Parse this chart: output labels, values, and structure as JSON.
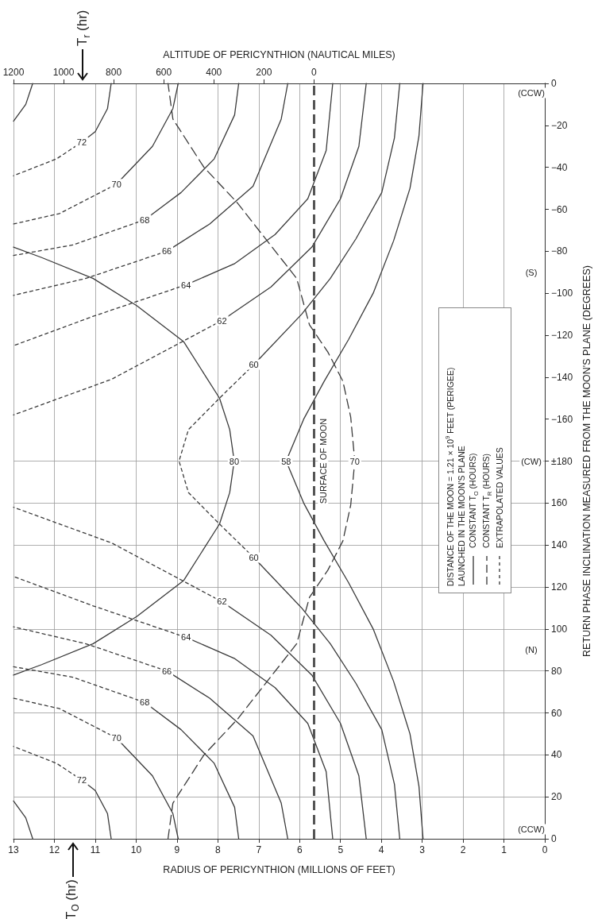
{
  "chart_data": {
    "type": "line",
    "xlabel": "RADIUS OF PERICYNTHION (MILLIONS OF FEET)",
    "x2label": "ALTITUDE OF PERICYNTHION (NAUTICAL MILES)",
    "y2label": "RETURN PHASE INCLINATION MEASURED FROM THE MOON'S PLANE (DEGREES)",
    "xlim": [
      13,
      0
    ],
    "xticks": [
      0,
      1,
      2,
      3,
      4,
      5,
      6,
      7,
      8,
      9,
      10,
      11,
      12,
      13
    ],
    "x2lim": [
      1200,
      -922
    ],
    "x2ticks": [
      0,
      200,
      400,
      600,
      800,
      1000,
      1200
    ],
    "ylim": [
      0,
      360
    ],
    "yticks": [
      0,
      20,
      40,
      60,
      80,
      100,
      120,
      140,
      160,
      {
        "value": 180,
        "label": "±180"
      }
    ],
    "y2lim": [
      -360,
      0
    ],
    "y2ticks": [
      {
        "value": -180,
        "label": null
      },
      {
        "value": -160,
        "label": "−160"
      },
      {
        "value": -140,
        "label": "−140"
      },
      {
        "value": -120,
        "label": "−120"
      },
      {
        "value": -100,
        "label": "−100"
      },
      {
        "value": -80,
        "label": "−80"
      },
      {
        "value": -60,
        "label": "−60"
      },
      {
        "value": -40,
        "label": "−40"
      },
      {
        "value": -20,
        "label": "−20"
      },
      0
    ],
    "grid": true,
    "marker": "none",
    "series": [
      {
        "color": "#3a3a3a",
        "line_style": "solid",
        "x": [
          12.53,
          12.7,
          13
        ],
        "values": [
          0,
          10,
          18
        ]
      },
      {
        "color": "#3a3a3a",
        "line_style": "solid",
        "axis": "y2",
        "x": [
          12.53,
          12.7,
          13
        ],
        "values": [
          0,
          -10,
          -18
        ]
      },
      {
        "name": "72",
        "color": "#3a3a3a",
        "line_style": "solid",
        "x": [
          10.61,
          10.7,
          11.0,
          11.33
        ],
        "values": [
          0,
          12,
          23,
          28
        ]
      },
      {
        "name": "72",
        "color": "#3a3a3a",
        "line_style": "solid",
        "axis": "y2",
        "x": [
          10.61,
          10.7,
          11.0,
          11.33
        ],
        "values": [
          0,
          -12,
          -23,
          -28
        ]
      },
      {
        "color": "#3a3a3a",
        "line_style": "dotted",
        "x": [
          11.33,
          11.95,
          13
        ],
        "values": [
          28,
          36,
          44
        ]
      },
      {
        "color": "#3a3a3a",
        "line_style": "dotted",
        "axis": "y2",
        "x": [
          11.33,
          11.95,
          13
        ],
        "values": [
          -28,
          -36,
          -44
        ]
      },
      {
        "name": "70",
        "color": "#3a3a3a",
        "line_style": "solid",
        "x": [
          8.97,
          9.1,
          9.6,
          10.48
        ],
        "values": [
          0,
          12,
          30,
          48
        ]
      },
      {
        "name": "70",
        "color": "#3a3a3a",
        "line_style": "solid",
        "axis": "y2",
        "x": [
          8.97,
          9.1,
          9.6,
          10.48
        ],
        "values": [
          0,
          -12,
          -30,
          -48
        ]
      },
      {
        "color": "#3a3a3a",
        "line_style": "dotted",
        "x": [
          10.48,
          11.87,
          13
        ],
        "values": [
          48,
          62,
          67
        ]
      },
      {
        "color": "#3a3a3a",
        "line_style": "dotted",
        "axis": "y2",
        "x": [
          10.48,
          11.87,
          13
        ],
        "values": [
          -48,
          -62,
          -67
        ]
      },
      {
        "name": "68",
        "color": "#3a3a3a",
        "line_style": "solid",
        "x": [
          7.49,
          7.59,
          8.09,
          8.9,
          9.79
        ],
        "values": [
          0,
          15,
          36,
          52,
          65
        ]
      },
      {
        "name": "68",
        "color": "#3a3a3a",
        "line_style": "solid",
        "axis": "y2",
        "x": [
          7.49,
          7.59,
          8.09,
          8.9,
          9.79
        ],
        "values": [
          0,
          -15,
          -36,
          -52,
          -65
        ]
      },
      {
        "color": "#3a3a3a",
        "line_style": "dotted",
        "x": [
          9.79,
          11.55,
          13
        ],
        "values": [
          65,
          77,
          82
        ]
      },
      {
        "color": "#3a3a3a",
        "line_style": "dotted",
        "axis": "y2",
        "x": [
          9.79,
          11.55,
          13
        ],
        "values": [
          -65,
          -77,
          -82
        ]
      },
      {
        "name": "66",
        "color": "#3a3a3a",
        "line_style": "solid",
        "x": [
          6.29,
          6.45,
          7.14,
          8.2,
          9.25
        ],
        "values": [
          0,
          17,
          49,
          67,
          80
        ]
      },
      {
        "name": "66",
        "color": "#3a3a3a",
        "line_style": "solid",
        "axis": "y2",
        "x": [
          6.29,
          6.45,
          7.14,
          8.2,
          9.25
        ],
        "values": [
          0,
          -17,
          -49,
          -67,
          -80
        ]
      },
      {
        "color": "#3a3a3a",
        "line_style": "dotted",
        "x": [
          9.25,
          11.24,
          13
        ],
        "values": [
          80,
          93,
          101
        ]
      },
      {
        "color": "#3a3a3a",
        "line_style": "dotted",
        "axis": "y2",
        "x": [
          9.25,
          11.24,
          13
        ],
        "values": [
          -80,
          -93,
          -101
        ]
      },
      {
        "name": "64",
        "color": "#3a3a3a",
        "line_style": "solid",
        "x": [
          5.19,
          5.35,
          5.8,
          6.6,
          7.6,
          8.78
        ],
        "values": [
          0,
          32,
          55,
          72,
          86,
          96
        ]
      },
      {
        "name": "64",
        "color": "#3a3a3a",
        "line_style": "solid",
        "axis": "y2",
        "x": [
          5.19,
          5.35,
          5.8,
          6.6,
          7.6,
          8.78
        ],
        "values": [
          0,
          -32,
          -55,
          -72,
          -86,
          -96
        ]
      },
      {
        "color": "#3a3a3a",
        "line_style": "dotted",
        "x": [
          8.78,
          11.05,
          13
        ],
        "values": [
          96,
          111,
          125
        ]
      },
      {
        "color": "#3a3a3a",
        "line_style": "dotted",
        "axis": "y2",
        "x": [
          8.78,
          11.05,
          13
        ],
        "values": [
          -96,
          -111,
          -125
        ]
      },
      {
        "name": "62",
        "color": "#3a3a3a",
        "line_style": "solid",
        "x": [
          4.37,
          4.55,
          5.0,
          5.7,
          6.7,
          7.9
        ],
        "values": [
          0,
          30,
          55,
          78,
          97,
          113
        ]
      },
      {
        "name": "62",
        "color": "#3a3a3a",
        "line_style": "solid",
        "axis": "y2",
        "x": [
          4.37,
          4.55,
          5.0,
          5.7,
          6.7,
          7.9
        ],
        "values": [
          0,
          -30,
          -55,
          -78,
          -97,
          -113
        ]
      },
      {
        "color": "#3a3a3a",
        "line_style": "dotted",
        "x": [
          7.9,
          10.6,
          13
        ],
        "values": [
          113,
          141,
          158
        ]
      },
      {
        "color": "#3a3a3a",
        "line_style": "dotted",
        "axis": "y2",
        "x": [
          7.9,
          10.6,
          13
        ],
        "values": [
          -113,
          -141,
          -158
        ]
      },
      {
        "name": "60",
        "color": "#3a3a3a",
        "line_style": "solid",
        "x": [
          3.55,
          3.68,
          3.99,
          4.62,
          5.25,
          5.95,
          7.12
        ],
        "values": [
          0,
          26,
          52,
          74,
          93,
          110,
          134
        ]
      },
      {
        "name": "60",
        "color": "#3a3a3a",
        "line_style": "solid",
        "axis": "y2",
        "x": [
          3.55,
          3.68,
          3.99,
          4.62,
          5.25,
          5.95,
          7.12
        ],
        "values": [
          0,
          -26,
          -52,
          -74,
          -93,
          -110,
          -134
        ]
      },
      {
        "color": "#3a3a3a",
        "line_style": "dotted",
        "x": [
          7.12,
          7.96,
          8.72,
          8.95,
          8.72,
          7.96,
          7.12
        ],
        "values": [
          134,
          150,
          165,
          180,
          195,
          210,
          226
        ]
      },
      {
        "name": "58",
        "color": "#3a3a3a",
        "line_style": "solid",
        "x": [
          2.98,
          3.08,
          3.3,
          3.7,
          4.2,
          4.8,
          5.4,
          5.9,
          6.33,
          5.9,
          5.4,
          4.8,
          4.2,
          3.7,
          3.3,
          3.08,
          2.98
        ],
        "values": [
          0,
          25,
          50,
          75,
          100,
          122,
          142,
          160,
          180,
          200,
          218,
          238,
          260,
          285,
          310,
          335,
          360
        ]
      },
      {
        "name": "80",
        "color": "#3a3a3a",
        "line_style": "solid",
        "x": [
          13,
          12.31,
          11.05,
          9.98,
          8.84,
          7.96,
          7.71,
          7.6,
          7.71,
          7.96,
          8.84,
          9.98,
          11.05,
          12.31,
          13
        ],
        "values": [
          78,
          83,
          93,
          106,
          123,
          150,
          165,
          180,
          195,
          210,
          237,
          254,
          267,
          277,
          282
        ]
      },
      {
        "name": "70",
        "color": "#3a3a3a",
        "line_style": "dashed",
        "x": [
          9.22,
          9.1,
          8.34,
          7.52,
          6.07,
          5.76,
          5.31,
          4.94,
          4.75,
          4.65,
          4.75,
          4.94,
          5.31,
          5.76,
          6.07,
          7.52,
          8.34,
          9.1,
          9.22
        ],
        "values": [
          0,
          17,
          40,
          57,
          93,
          115,
          128,
          142,
          159,
          180,
          201,
          218,
          232,
          245,
          267,
          303,
          320,
          343,
          360
        ]
      }
    ],
    "ref_lines": [
      {
        "axis": "x",
        "value": 5.65,
        "label": "SURFACE OF MOON",
        "color": "#555555",
        "line_style": "dashed"
      }
    ],
    "annotations": [
      "T$_{O}$ (hr)",
      "T$_{r}$ (hr)",
      "DISTANCE OF THE MOON = 1.21 × 10$^{9}$ FEET (PERIGEE)",
      "LAUNCHED IN THE MOON'S PLANE",
      "CONSTANT T$_{O}$ (HOURS)",
      "CONSTANT T$_{R}$ (HOURS)",
      "EXTRAPOLATED VALUES",
      "(S)",
      "(CCW)",
      "(CCW)",
      "(N)",
      "(CW)"
    ]
  }
}
